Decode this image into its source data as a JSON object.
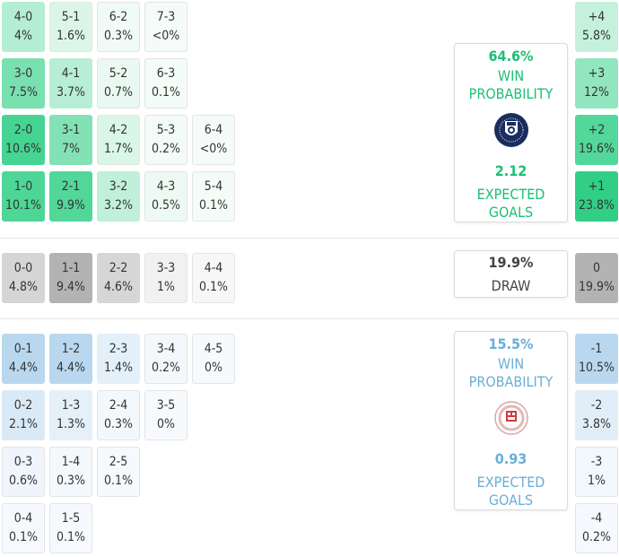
{
  "home": {
    "win_pct": "64.6%",
    "win_label_1": "WIN",
    "win_label_2": "PROBABILITY",
    "xg": "2.12",
    "xg_label_1": "EXPECTED",
    "xg_label_2": "GOALS",
    "color": "#1bbf73"
  },
  "draw": {
    "pct": "19.9%",
    "label": "DRAW"
  },
  "away": {
    "win_pct": "15.5%",
    "win_label_1": "WIN",
    "win_label_2": "PROBABILITY",
    "xg": "0.93",
    "xg_label_1": "EXPECTED",
    "xg_label_2": "GOALS",
    "color": "#6aaed6"
  },
  "home_rows": [
    [
      {
        "score": "4-0",
        "pct": "4%"
      },
      {
        "score": "5-1",
        "pct": "1.6%"
      },
      {
        "score": "6-2",
        "pct": "0.3%"
      },
      {
        "score": "7-3",
        "pct": "<0%"
      }
    ],
    [
      {
        "score": "3-0",
        "pct": "7.5%"
      },
      {
        "score": "4-1",
        "pct": "3.7%"
      },
      {
        "score": "5-2",
        "pct": "0.7%"
      },
      {
        "score": "6-3",
        "pct": "0.1%"
      }
    ],
    [
      {
        "score": "2-0",
        "pct": "10.6%"
      },
      {
        "score": "3-1",
        "pct": "7%"
      },
      {
        "score": "4-2",
        "pct": "1.7%"
      },
      {
        "score": "5-3",
        "pct": "0.2%"
      },
      {
        "score": "6-4",
        "pct": "<0%"
      }
    ],
    [
      {
        "score": "1-0",
        "pct": "10.1%"
      },
      {
        "score": "2-1",
        "pct": "9.9%"
      },
      {
        "score": "3-2",
        "pct": "3.2%"
      },
      {
        "score": "4-3",
        "pct": "0.5%"
      },
      {
        "score": "5-4",
        "pct": "0.1%"
      }
    ]
  ],
  "draw_row": [
    {
      "score": "0-0",
      "pct": "4.8%"
    },
    {
      "score": "1-1",
      "pct": "9.4%"
    },
    {
      "score": "2-2",
      "pct": "4.6%"
    },
    {
      "score": "3-3",
      "pct": "1%"
    },
    {
      "score": "4-4",
      "pct": "0.1%"
    }
  ],
  "away_rows": [
    [
      {
        "score": "0-1",
        "pct": "4.4%"
      },
      {
        "score": "1-2",
        "pct": "4.4%"
      },
      {
        "score": "2-3",
        "pct": "1.4%"
      },
      {
        "score": "3-4",
        "pct": "0.2%"
      },
      {
        "score": "4-5",
        "pct": "0%"
      }
    ],
    [
      {
        "score": "0-2",
        "pct": "2.1%"
      },
      {
        "score": "1-3",
        "pct": "1.3%"
      },
      {
        "score": "2-4",
        "pct": "0.3%"
      },
      {
        "score": "3-5",
        "pct": "0%"
      }
    ],
    [
      {
        "score": "0-3",
        "pct": "0.6%"
      },
      {
        "score": "1-4",
        "pct": "0.3%"
      },
      {
        "score": "2-5",
        "pct": "0.1%"
      }
    ],
    [
      {
        "score": "0-4",
        "pct": "0.1%"
      },
      {
        "score": "1-5",
        "pct": "0.1%"
      }
    ]
  ],
  "margins": [
    {
      "label": "+4",
      "pct": "5.8%"
    },
    {
      "label": "+3",
      "pct": "12%"
    },
    {
      "label": "+2",
      "pct": "19.6%"
    },
    {
      "label": "+1",
      "pct": "23.8%"
    },
    {
      "label": "0",
      "pct": "19.9%"
    },
    {
      "label": "-1",
      "pct": "10.5%"
    },
    {
      "label": "-2",
      "pct": "3.8%"
    },
    {
      "label": "-3",
      "pct": "1%"
    },
    {
      "label": "-4",
      "pct": "0.2%"
    }
  ]
}
